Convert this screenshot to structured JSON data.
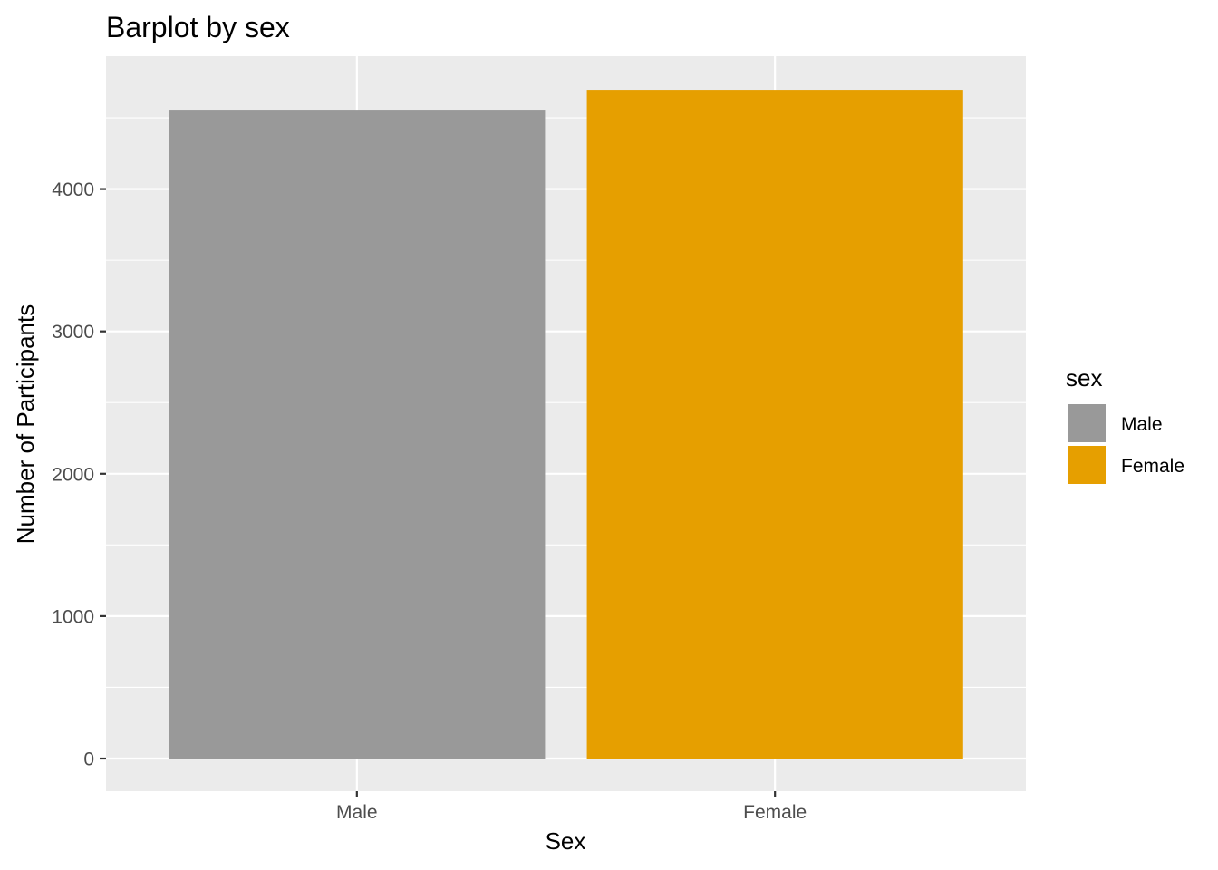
{
  "chart_data": {
    "type": "bar",
    "title": "Barplot by sex",
    "xlabel": "Sex",
    "ylabel": "Number of Participants",
    "categories": [
      "Male",
      "Female"
    ],
    "values": [
      4557,
      4697
    ],
    "colors": [
      "#999999",
      "#E69F00"
    ],
    "ylim": [
      0,
      4933
    ],
    "yticks": [
      0,
      1000,
      2000,
      3000,
      4000
    ],
    "ytick_labels": [
      "0",
      "1000",
      "2000",
      "3000",
      "4000"
    ],
    "grid": true,
    "legend": {
      "title": "sex",
      "position": "right",
      "entries": [
        "Male",
        "Female"
      ]
    },
    "panel_background": "#EBEBEB",
    "grid_color": "#FFFFFF"
  }
}
